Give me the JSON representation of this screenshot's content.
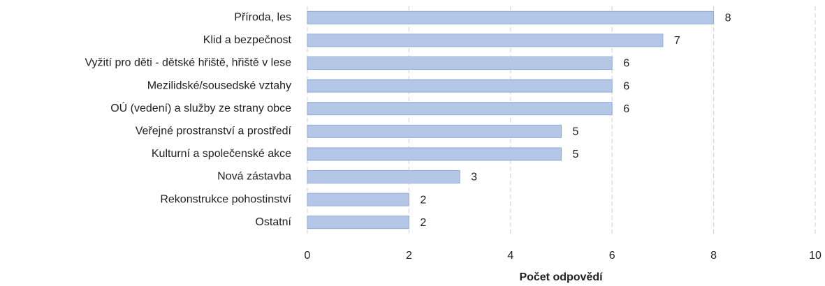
{
  "chart_data": {
    "type": "barh",
    "categories": [
      "Příroda, les",
      "Klid a bezpečnost",
      "Vyžití pro děti - dětské hřiště, hřiště v lese",
      "Mezilidské/sousedské vztahy",
      "OÚ (vedení) a služby ze strany obce",
      "Veřejné prostranství a prostředí",
      "Kulturní a společenské akce",
      "Nová zástavba",
      "Rekonstrukce pohostinství",
      "Ostatní"
    ],
    "values": [
      8,
      7,
      6,
      6,
      6,
      5,
      5,
      3,
      2,
      2
    ],
    "color": "#b4c7e7",
    "xlim": [
      0,
      10
    ],
    "xticks": [
      0,
      2,
      4,
      6,
      8,
      10
    ],
    "xlabel": "Počet odpovědí",
    "grid": true
  }
}
